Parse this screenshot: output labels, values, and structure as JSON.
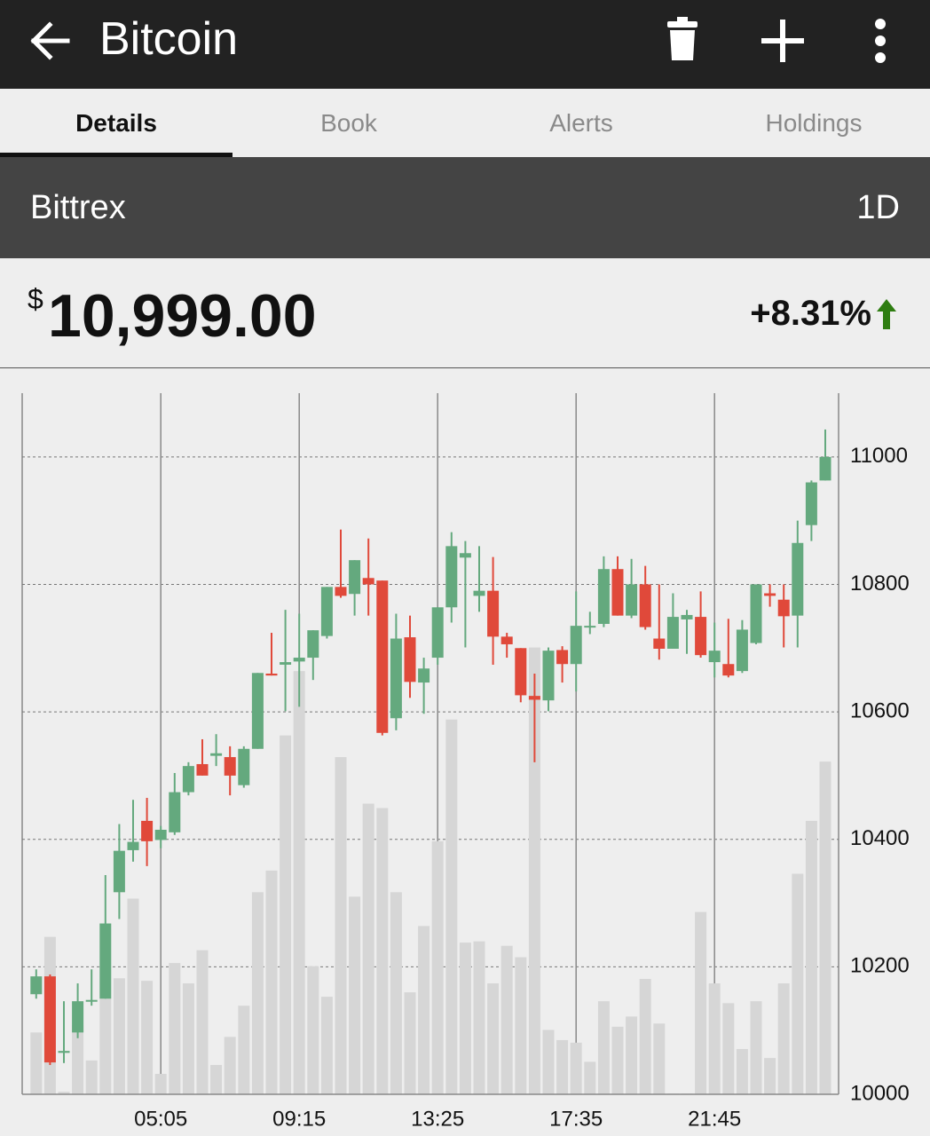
{
  "header": {
    "title": "Bitcoin"
  },
  "tabs": [
    "Details",
    "Book",
    "Alerts",
    "Holdings"
  ],
  "exchange": "Bittrex",
  "range": "1D",
  "price": {
    "currency": "$",
    "value": "10,999.00"
  },
  "change": "+8.31%",
  "chart_data": {
    "type": "candlestick",
    "categories": [
      null,
      null,
      null,
      null,
      null,
      null,
      null,
      null,
      null,
      "05:05",
      null,
      null,
      null,
      null,
      null,
      null,
      null,
      null,
      null,
      "09:15",
      null,
      null,
      null,
      null,
      null,
      null,
      null,
      null,
      null,
      "13:25",
      null,
      null,
      null,
      null,
      null,
      null,
      null,
      null,
      null,
      "17:35",
      null,
      null,
      null,
      null,
      null,
      null,
      null,
      null,
      null,
      "21:45",
      null,
      null,
      null,
      null,
      null,
      null,
      null,
      null
    ],
    "open": [
      10157,
      10185,
      10065,
      10097,
      10146,
      10150,
      10317,
      10383,
      10429,
      10399,
      10411,
      10474,
      10518,
      10531,
      10529,
      10485,
      10542,
      10660,
      10674,
      10679,
      10685,
      10719,
      10796,
      10785,
      10810,
      10806,
      10590,
      10717,
      10646,
      10685,
      10764,
      10842,
      10782,
      10790,
      10718,
      10700,
      10625,
      10618,
      10697,
      10675,
      10733,
      10738,
      10824,
      10751,
      10800,
      10715,
      10699,
      10745,
      10749,
      10678,
      10675,
      10664,
      10708,
      10786,
      10776,
      10751,
      10893,
      10963
    ],
    "high": [
      10196,
      10188,
      10146,
      10174,
      10196,
      10344,
      10424,
      10462,
      10465,
      10421,
      10504,
      10521,
      10557,
      10565,
      10546,
      10546,
      10661,
      10724,
      10760,
      10754,
      10728,
      10796,
      10886,
      10838,
      10872,
      10806,
      10754,
      10751,
      10685,
      10764,
      10882,
      10868,
      10860,
      10843,
      10724,
      10700,
      10660,
      10701,
      10703,
      10789,
      10757,
      10844,
      10844,
      10840,
      10829,
      10800,
      10786,
      10760,
      10789,
      10740,
      10746,
      10744,
      10800,
      10800,
      10800,
      10900,
      10963,
      11043
    ],
    "low": [
      10150,
      10046,
      10049,
      10088,
      10139,
      10150,
      10275,
      10365,
      10358,
      10386,
      10407,
      10469,
      10500,
      10515,
      10469,
      10481,
      10542,
      10657,
      10601,
      10608,
      10650,
      10715,
      10779,
      10751,
      10751,
      10563,
      10571,
      10622,
      10597,
      10674,
      10740,
      10701,
      10757,
      10674,
      10685,
      10615,
      10521,
      10601,
      10646,
      10632,
      10722,
      10733,
      10751,
      10747,
      10729,
      10682,
      10699,
      10691,
      10685,
      10654,
      10654,
      10661,
      10706,
      10765,
      10701,
      10701,
      10868,
      10963
    ],
    "close": [
      10185,
      10050,
      10068,
      10146,
      10148,
      10268,
      10382,
      10396,
      10397,
      10415,
      10474,
      10515,
      10500,
      10535,
      10500,
      10542,
      10661,
      10657,
      10678,
      10685,
      10728,
      10796,
      10782,
      10838,
      10800,
      10567,
      10715,
      10647,
      10668,
      10764,
      10860,
      10849,
      10790,
      10718,
      10706,
      10626,
      10619,
      10696,
      10675,
      10735,
      10735,
      10824,
      10751,
      10800,
      10733,
      10699,
      10749,
      10752,
      10689,
      10696,
      10657,
      10729,
      10800,
      10782,
      10750,
      10865,
      10960,
      11000
    ],
    "volume": [
      97,
      247,
      4,
      108,
      53,
      150,
      182,
      307,
      178,
      32,
      206,
      174,
      226,
      46,
      90,
      139,
      317,
      351,
      563,
      664,
      201,
      153,
      529,
      310,
      456,
      449,
      317,
      160,
      264,
      397,
      588,
      238,
      240,
      174,
      233,
      215,
      701,
      101,
      85,
      81,
      51,
      146,
      106,
      122,
      181,
      111,
      1,
      1,
      286,
      174,
      143,
      71,
      146,
      57,
      174,
      346,
      429,
      522
    ],
    "up_color": "#64a97e",
    "down_color": "#e0493a",
    "volume_color": "#d6d6d6",
    "ylim": [
      10000,
      11100
    ],
    "yticks": [
      10000,
      10200,
      10400,
      10600,
      10800,
      11000
    ],
    "grid": true
  }
}
